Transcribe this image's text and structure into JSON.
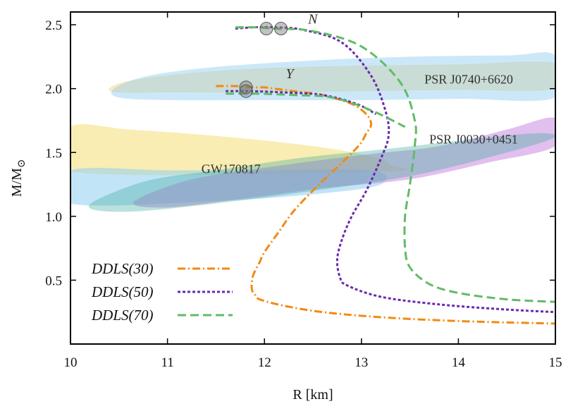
{
  "chart_data": {
    "type": "line",
    "xlabel": "R [km]",
    "ylabel_main": "M/M",
    "ylabel_sub": "⊙",
    "xlim": [
      10,
      15
    ],
    "ylim": [
      0,
      2.6
    ],
    "xticks": [
      10,
      11,
      12,
      13,
      14,
      15
    ],
    "yticks": [
      0.5,
      1.0,
      1.5,
      2.0,
      2.5
    ],
    "xtick_labels": [
      "10",
      "11",
      "12",
      "13",
      "14",
      "15"
    ],
    "ytick_labels": [
      "0.5",
      "1.0",
      "1.5",
      "2.0",
      "2.5"
    ],
    "grid": false,
    "legend_position": "bottom-left",
    "regions": [
      {
        "label": "PSR J0740+6620",
        "color": "#f5d78a",
        "opacity": 0.55,
        "points": [
          [
            10.4,
            2.0
          ],
          [
            10.6,
            2.06
          ],
          [
            11.2,
            2.12
          ],
          [
            12.0,
            2.16
          ],
          [
            13.0,
            2.18
          ],
          [
            14.0,
            2.19
          ],
          [
            15.0,
            2.2
          ],
          [
            15.0,
            2.0
          ],
          [
            14.0,
            1.99
          ],
          [
            13.0,
            1.98
          ],
          [
            12.0,
            1.97
          ],
          [
            11.0,
            1.97
          ],
          [
            10.5,
            1.97
          ]
        ]
      },
      {
        "label": "",
        "color": "#8fcdf0",
        "opacity": 0.45,
        "points": [
          [
            10.45,
            2.0
          ],
          [
            10.8,
            2.1
          ],
          [
            11.5,
            2.17
          ],
          [
            12.5,
            2.22
          ],
          [
            13.5,
            2.25
          ],
          [
            14.5,
            2.26
          ],
          [
            15.0,
            2.26
          ],
          [
            15.0,
            1.93
          ],
          [
            14.0,
            1.92
          ],
          [
            13.0,
            1.91
          ],
          [
            12.0,
            1.91
          ],
          [
            11.0,
            1.91
          ],
          [
            10.5,
            1.93
          ]
        ]
      },
      {
        "label": "GW170817",
        "color": "#f7e79a",
        "opacity": 0.75,
        "points": [
          [
            10.0,
            1.7
          ],
          [
            10.6,
            1.68
          ],
          [
            11.5,
            1.63
          ],
          [
            12.5,
            1.55
          ],
          [
            13.1,
            1.47
          ],
          [
            13.3,
            1.4
          ],
          [
            13.2,
            1.35
          ],
          [
            10.0,
            1.35
          ]
        ]
      },
      {
        "label": "",
        "color": "#8fcdf0",
        "opacity": 0.55,
        "points": [
          [
            10.0,
            1.36
          ],
          [
            11.0,
            1.36
          ],
          [
            12.0,
            1.36
          ],
          [
            13.1,
            1.36
          ],
          [
            13.2,
            1.25
          ],
          [
            12.6,
            1.18
          ],
          [
            11.5,
            1.12
          ],
          [
            10.0,
            1.1
          ]
        ]
      },
      {
        "label": "PSR J0030+0451",
        "color": "#c98be0",
        "opacity": 0.55,
        "points": [
          [
            10.65,
            1.11
          ],
          [
            11.2,
            1.28
          ],
          [
            12.0,
            1.38
          ],
          [
            13.0,
            1.48
          ],
          [
            13.8,
            1.55
          ],
          [
            14.5,
            1.68
          ],
          [
            15.0,
            1.77
          ],
          [
            15.0,
            1.55
          ],
          [
            14.3,
            1.42
          ],
          [
            13.5,
            1.29
          ],
          [
            12.6,
            1.22
          ],
          [
            11.8,
            1.14
          ],
          [
            11.0,
            1.07
          ]
        ]
      },
      {
        "label": "",
        "color": "#3aa898",
        "opacity": 0.35,
        "points": [
          [
            10.25,
            1.12
          ],
          [
            10.8,
            1.28
          ],
          [
            11.5,
            1.36
          ],
          [
            12.4,
            1.46
          ],
          [
            13.3,
            1.53
          ],
          [
            14.2,
            1.61
          ],
          [
            14.8,
            1.65
          ],
          [
            15.0,
            1.62
          ],
          [
            14.5,
            1.5
          ],
          [
            13.6,
            1.33
          ],
          [
            12.6,
            1.21
          ],
          [
            11.6,
            1.11
          ],
          [
            10.7,
            1.04
          ],
          [
            10.25,
            1.05
          ]
        ]
      }
    ],
    "series": [
      {
        "name": "DDLS(30)",
        "color": "#f28a12",
        "dash": "11,4,2,4",
        "x": [
          11.5,
          11.7,
          11.9,
          12.0,
          12.1,
          12.3,
          12.6,
          12.9,
          13.05,
          13.1,
          13.05,
          12.98,
          12.8,
          12.55,
          12.3,
          12.15,
          12.0,
          11.95,
          11.88,
          11.87,
          11.9,
          11.95,
          12.2,
          12.6,
          13.2,
          14.0,
          15.0
        ],
        "y": [
          2.02,
          2.02,
          2.01,
          2.01,
          2.0,
          1.98,
          1.95,
          1.88,
          1.8,
          1.72,
          1.65,
          1.56,
          1.42,
          1.24,
          1.04,
          0.88,
          0.72,
          0.64,
          0.53,
          0.43,
          0.39,
          0.35,
          0.3,
          0.25,
          0.21,
          0.18,
          0.16
        ]
      },
      {
        "name": "DDLS(50)",
        "color": "#6a2ab0",
        "dash": "4,3",
        "x": [
          11.7,
          11.9,
          12.1,
          12.4,
          12.8,
          13.1,
          13.25,
          13.28,
          13.2,
          13.05,
          12.9,
          12.8,
          12.75,
          12.78,
          12.85,
          13.2,
          13.8,
          14.5,
          15.0
        ],
        "y": [
          2.47,
          2.48,
          2.48,
          2.46,
          2.36,
          2.1,
          1.82,
          1.63,
          1.45,
          1.2,
          1.0,
          0.82,
          0.66,
          0.52,
          0.46,
          0.37,
          0.31,
          0.27,
          0.25
        ]
      },
      {
        "name": "DDLS(70)",
        "color": "#62bb66",
        "dash": "12,6",
        "x": [
          11.7,
          11.9,
          12.1,
          12.5,
          13.0,
          13.4,
          13.55,
          13.55,
          13.5,
          13.45,
          13.45,
          13.5,
          13.7,
          14.0,
          14.5,
          15.0
        ],
        "y": [
          2.48,
          2.48,
          2.47,
          2.45,
          2.33,
          2.05,
          1.75,
          1.55,
          1.25,
          1.0,
          0.75,
          0.6,
          0.47,
          0.4,
          0.35,
          0.33
        ]
      }
    ],
    "second_lines": [
      {
        "series": "DDLS(50)",
        "x": [
          11.6,
          11.85,
          12.2,
          12.6,
          12.95,
          13.15
        ],
        "y": [
          1.98,
          1.98,
          1.97,
          1.95,
          1.88,
          1.8
        ]
      },
      {
        "series": "DDLS(70)",
        "x": [
          11.6,
          11.9,
          12.3,
          12.7,
          13.1,
          13.45
        ],
        "y": [
          1.96,
          1.96,
          1.95,
          1.93,
          1.83,
          1.7
        ]
      }
    ],
    "markers": [
      {
        "x": 12.02,
        "y": 2.47
      },
      {
        "x": 12.17,
        "y": 2.47
      },
      {
        "x": 11.81,
        "y": 2.01
      },
      {
        "x": 11.81,
        "y": 1.98
      }
    ],
    "region_labels": [
      {
        "text": "PSR J0740+6620",
        "x": 13.65,
        "y": 2.04
      },
      {
        "text": "PSR J0030+0451",
        "x": 13.7,
        "y": 1.57
      },
      {
        "text": "GW170817",
        "x": 11.35,
        "y": 1.34
      }
    ],
    "branch_labels": [
      {
        "text": "N",
        "x": 12.45,
        "y": 2.51
      },
      {
        "text": "Y",
        "x": 12.22,
        "y": 2.08
      }
    ],
    "legend": [
      {
        "label": "DDLS(30)",
        "color": "#f28a12",
        "dash": "11,4,2,4"
      },
      {
        "label": "DDLS(50)",
        "color": "#6a2ab0",
        "dash": "4,3"
      },
      {
        "label": "DDLS(70)",
        "color": "#62bb66",
        "dash": "12,6"
      }
    ]
  }
}
